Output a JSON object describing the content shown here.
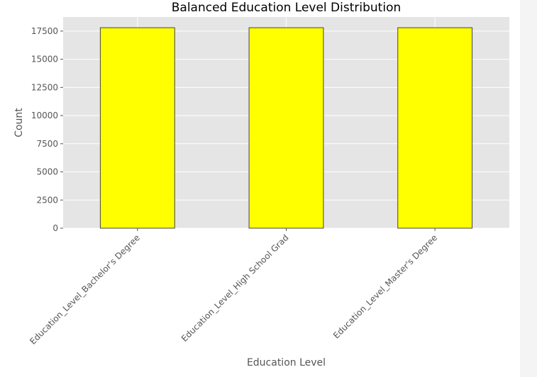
{
  "chart_data": {
    "type": "bar",
    "title": "Balanced Education Level Distribution",
    "xlabel": "Education Level",
    "ylabel": "Count",
    "categories": [
      "Education_Level_Bachelor's Degree",
      "Education_Level_High School Grad",
      "Education_Level_Master's Degree"
    ],
    "values": [
      17800,
      17800,
      17800
    ],
    "ylim": [
      0,
      18750
    ],
    "yticks": [
      0,
      2500,
      5000,
      7500,
      10000,
      12500,
      15000,
      17500
    ],
    "ytick_labels": [
      "0",
      "2500",
      "5000",
      "7500",
      "10000",
      "12500",
      "15000",
      "17500"
    ],
    "grid": true,
    "legend": "none",
    "style": "ggplot"
  },
  "colors": {
    "bar_fill": "#ffff00",
    "bar_edge": "#444444",
    "plot_background": "#e5e5e5",
    "grid": "#ffffff",
    "tick_text": "#555555",
    "title_text": "#000000"
  }
}
